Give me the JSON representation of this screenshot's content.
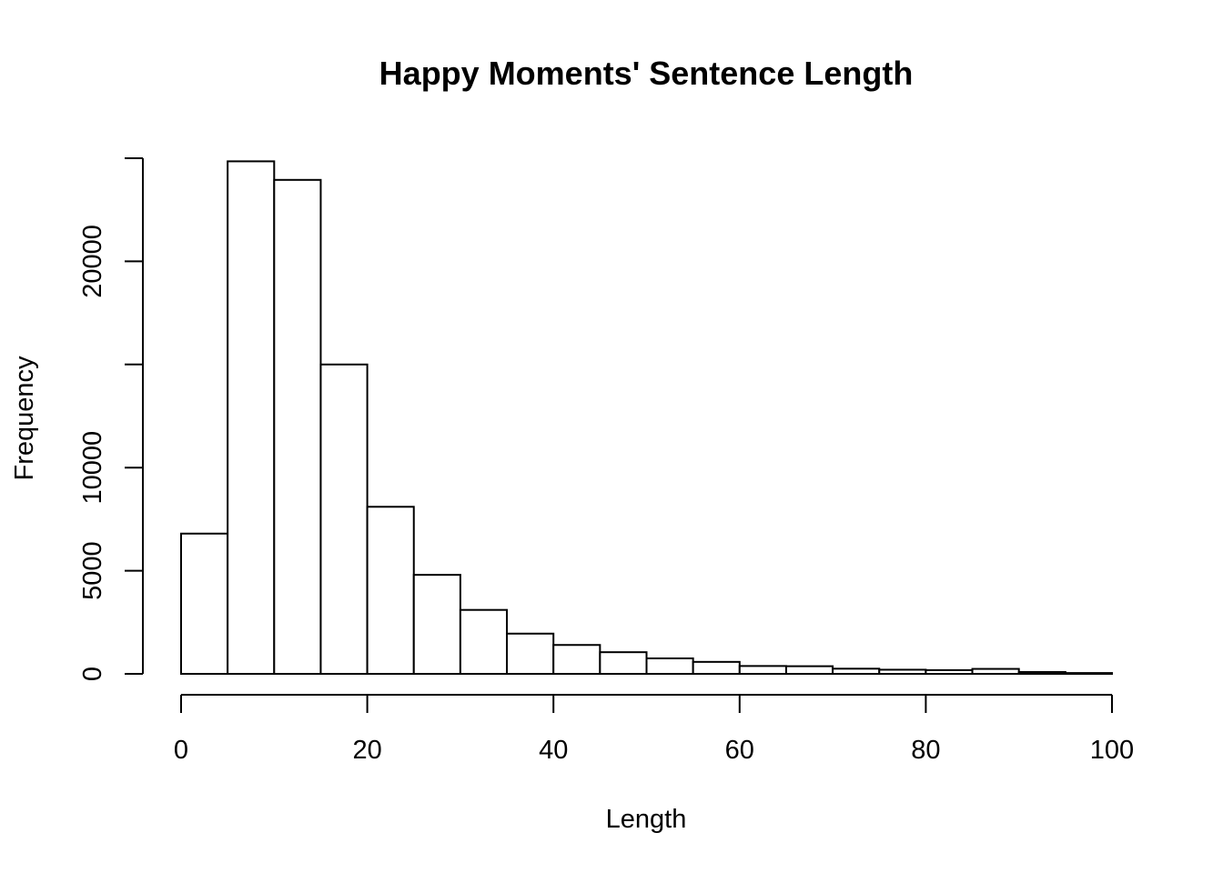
{
  "chart_data": {
    "type": "bar",
    "title": "Happy Moments' Sentence Length",
    "xlabel": "Length",
    "ylabel": "Frequency",
    "bin_edges": [
      0,
      5,
      10,
      15,
      20,
      25,
      30,
      35,
      40,
      45,
      50,
      55,
      60,
      65,
      70,
      75,
      80,
      85,
      90,
      95,
      100
    ],
    "values": [
      6800,
      24850,
      23950,
      15000,
      8100,
      4800,
      3100,
      1950,
      1400,
      1050,
      750,
      580,
      380,
      370,
      250,
      200,
      180,
      240,
      90,
      40
    ],
    "xlim": [
      0,
      100
    ],
    "ylim": [
      0,
      25000
    ],
    "x_ticks": [
      0,
      20,
      40,
      60,
      80,
      100
    ],
    "x_tick_labels": [
      "0",
      "20",
      "40",
      "60",
      "80",
      "100"
    ],
    "y_ticks": [
      0,
      5000,
      10000,
      15000,
      20000,
      25000
    ],
    "y_tick_labels": [
      "0",
      "5000",
      "10000",
      "",
      "20000",
      ""
    ],
    "grid": false,
    "bar_fill": "#ffffff",
    "bar_stroke": "#000000"
  }
}
